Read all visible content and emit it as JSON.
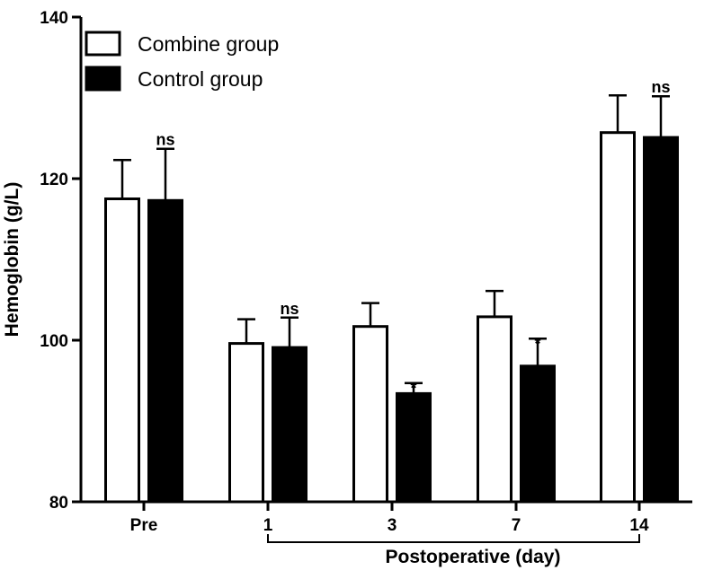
{
  "chart_data": {
    "type": "bar",
    "ylabel": "Hemoglobin (g/L)",
    "xlabel": "Postoperative (day)",
    "ylim": [
      80,
      140
    ],
    "yticks": [
      80,
      100,
      120,
      140
    ],
    "categories": [
      "Pre",
      "1",
      "3",
      "7",
      "14"
    ],
    "series": [
      {
        "name": "Combine group",
        "fill": "#ffffff",
        "values": [
          117.5,
          99.6,
          101.7,
          102.9,
          125.7
        ],
        "errors": [
          4.8,
          3.0,
          2.9,
          3.2,
          4.6
        ]
      },
      {
        "name": "Control group",
        "fill": "#000000",
        "values": [
          117.3,
          99.1,
          93.4,
          96.8,
          125.1
        ],
        "errors": [
          6.4,
          3.7,
          1.3,
          3.4,
          5.1
        ]
      }
    ],
    "significance": [
      "ns",
      "ns",
      "*",
      "*",
      "ns"
    ],
    "postoperative_bracket": [
      "1",
      "14"
    ],
    "legend_position": "top-left",
    "grid": false
  }
}
